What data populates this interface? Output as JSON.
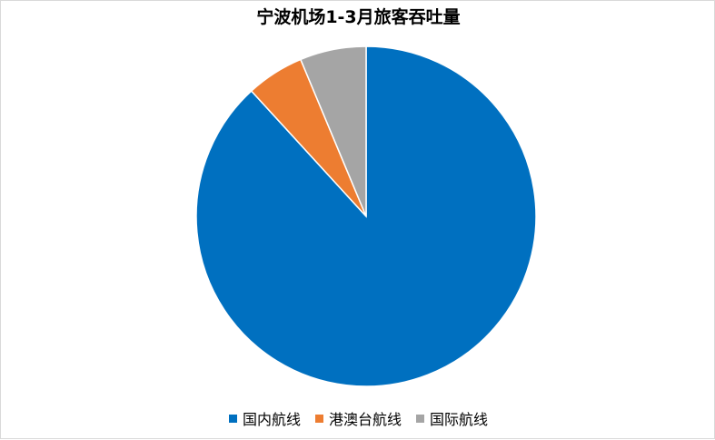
{
  "chart_data": {
    "type": "pie",
    "title": "宁波机场1-3月旅客吞吐量",
    "categories": [
      "国内航线",
      "港澳台航线",
      "国际航线"
    ],
    "values": [
      88.2,
      5.5,
      6.3
    ],
    "colors": [
      "#0070C0",
      "#ED7D31",
      "#A5A5A5"
    ],
    "start_angle_deg": 0,
    "direction": "clockwise",
    "legend_position": "bottom",
    "slice_border_color": "#ffffff"
  }
}
